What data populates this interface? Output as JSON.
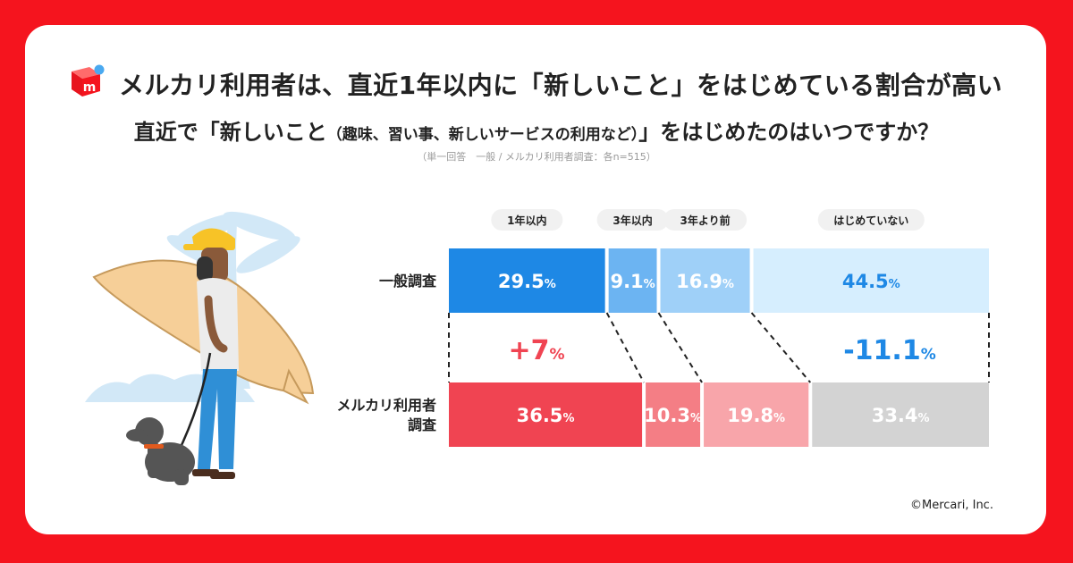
{
  "header": {
    "title": "メルカリ利用者は、直近1年以内に「新しいこと」をはじめている割合が高い",
    "question_pre": "直近で「新しいこと",
    "question_small": "（趣味、習い事、新しいサービスの利用など）",
    "question_post": "」をはじめたのはいつですか？",
    "note": "（単一回答　一般 / メルカリ利用者調査：各n=515）"
  },
  "footer": {
    "copyright": "©Mercari, Inc."
  },
  "colors": {
    "frame": "#f5141e",
    "general": [
      "#1e88e5",
      "#6cb4f2",
      "#9fd0f8",
      "#d6eefe"
    ],
    "mercari": [
      "#f04452",
      "#f47e85",
      "#f8a5aa",
      "#d3d3d3"
    ],
    "diff_positive": "#f04452",
    "diff_negative": "#1e88e5"
  },
  "chart_data": {
    "type": "bar",
    "orientation": "horizontal-stacked",
    "categories": [
      "1年以内",
      "3年以内",
      "3年より前",
      "はじめていない"
    ],
    "unit": "%",
    "series": [
      {
        "name": "一般調査",
        "values": [
          29.5,
          9.1,
          16.9,
          44.5
        ]
      },
      {
        "name": "メルカリ利用者調査",
        "label_lines": [
          "メルカリ利用者",
          "調査"
        ],
        "values": [
          36.5,
          10.3,
          19.8,
          33.4
        ]
      }
    ],
    "annotations": [
      {
        "category": "1年以内",
        "text": "+7",
        "unit": "%"
      },
      {
        "category": "はじめていない",
        "text": "-11.1",
        "unit": "%"
      }
    ]
  }
}
